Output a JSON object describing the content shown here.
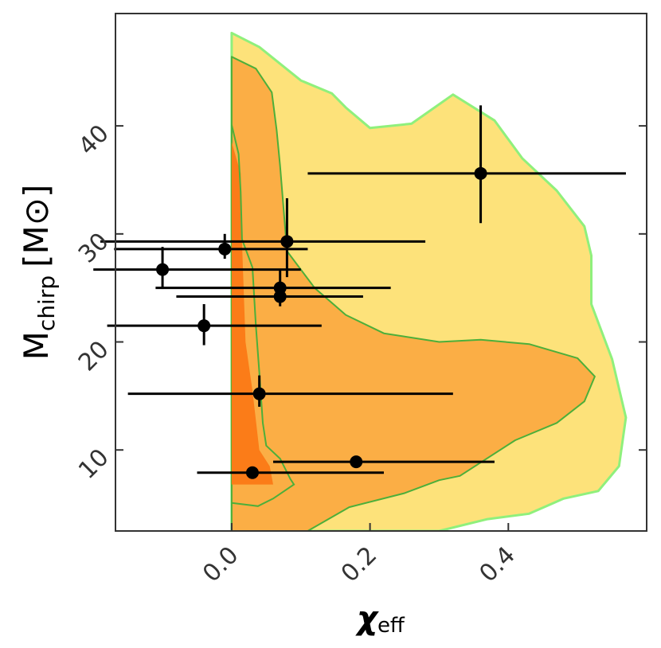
{
  "chart_data": {
    "type": "scatter",
    "xlabel": "χ",
    "xlabel_sub": "eff",
    "ylabel": "M",
    "ylabel_sub": "chirp",
    "ylabel_unit": "[M⊙]",
    "xlim": [
      -0.168,
      0.6
    ],
    "ylim": [
      2.5,
      50.4
    ],
    "x_ticks": [
      0.0,
      0.2,
      0.4
    ],
    "x_tick_labels": [
      "0.0",
      "0.2",
      "0.4"
    ],
    "y_ticks": [
      10,
      20,
      30,
      40
    ],
    "y_tick_labels": [
      "10",
      "20",
      "30",
      "40"
    ],
    "grid": false,
    "colors": {
      "outer_region": "#fde27a",
      "outer_edge": "#8ff07c",
      "middle_region": "#fbae45",
      "inner_region": "#fb7c18",
      "contour_line": "#4caf3a",
      "points": "#000000"
    },
    "regions": [
      {
        "level": "outer",
        "points": [
          [
            0.0,
            48.6
          ],
          [
            0.04,
            47.3
          ],
          [
            0.1,
            44.2
          ],
          [
            0.145,
            43.0
          ],
          [
            0.165,
            41.7
          ],
          [
            0.2,
            39.8
          ],
          [
            0.26,
            40.2
          ],
          [
            0.32,
            42.9
          ],
          [
            0.38,
            40.5
          ],
          [
            0.42,
            37.0
          ],
          [
            0.47,
            34.0
          ],
          [
            0.51,
            30.7
          ],
          [
            0.52,
            28.0
          ],
          [
            0.52,
            23.5
          ],
          [
            0.55,
            18.4
          ],
          [
            0.57,
            13.0
          ],
          [
            0.56,
            8.5
          ],
          [
            0.53,
            6.2
          ],
          [
            0.48,
            5.5
          ],
          [
            0.43,
            4.1
          ],
          [
            0.37,
            3.6
          ],
          [
            0.3,
            2.5
          ],
          [
            0.0,
            2.5
          ]
        ]
      },
      {
        "level": "middle",
        "points": [
          [
            0.0,
            46.4
          ],
          [
            0.035,
            45.3
          ],
          [
            0.058,
            43.1
          ],
          [
            0.065,
            39.6
          ],
          [
            0.07,
            36.3
          ],
          [
            0.08,
            28.4
          ],
          [
            0.12,
            25.0
          ],
          [
            0.165,
            22.5
          ],
          [
            0.22,
            20.8
          ],
          [
            0.3,
            20.0
          ],
          [
            0.36,
            20.2
          ],
          [
            0.43,
            19.8
          ],
          [
            0.5,
            18.5
          ],
          [
            0.525,
            16.8
          ],
          [
            0.51,
            14.5
          ],
          [
            0.47,
            12.5
          ],
          [
            0.41,
            10.9
          ],
          [
            0.33,
            7.6
          ],
          [
            0.3,
            7.2
          ],
          [
            0.25,
            6.0
          ],
          [
            0.17,
            4.7
          ],
          [
            0.11,
            2.5
          ],
          [
            0.0,
            2.5
          ]
        ]
      },
      {
        "level": "inner",
        "points": [
          [
            0.0,
            38.5
          ],
          [
            0.013,
            35.6
          ],
          [
            0.015,
            29.2
          ],
          [
            0.02,
            20.0
          ],
          [
            0.03,
            15.5
          ],
          [
            0.04,
            10.0
          ],
          [
            0.055,
            8.5
          ],
          [
            0.06,
            6.8
          ],
          [
            0.0,
            6.8
          ]
        ]
      }
    ],
    "contours": [
      [
        [
          0.0,
          40.1
        ],
        [
          0.01,
          37.4
        ],
        [
          0.013,
          33.9
        ],
        [
          0.015,
          29.5
        ],
        [
          0.03,
          26.9
        ],
        [
          0.035,
          21.5
        ],
        [
          0.04,
          17.2
        ],
        [
          0.045,
          12.5
        ],
        [
          0.05,
          10.4
        ],
        [
          0.07,
          9.2
        ],
        [
          0.085,
          7.3
        ],
        [
          0.09,
          6.8
        ],
        [
          0.06,
          5.5
        ],
        [
          0.038,
          4.8
        ],
        [
          0.0,
          5.1
        ]
      ]
    ],
    "series": [
      {
        "points": [
          {
            "x": -0.1,
            "y": 26.7,
            "xerr": [
              0.1,
              0.2
            ],
            "yerr": [
              1.8,
              2.1
            ]
          },
          {
            "x": -0.01,
            "y": 28.6,
            "xerr": [
              0.16,
              0.12
            ],
            "yerr": [
              0.9,
              1.4
            ]
          },
          {
            "x": 0.08,
            "y": 29.3,
            "xerr": [
              0.27,
              0.2
            ],
            "yerr": [
              3.3,
              4.0
            ]
          },
          {
            "x": 0.07,
            "y": 25.0,
            "xerr": [
              0.18,
              0.16
            ],
            "yerr": [
              1.3,
              1.6
            ]
          },
          {
            "x": 0.07,
            "y": 24.2,
            "xerr": [
              0.15,
              0.12
            ],
            "yerr": [
              0.9,
              1.1
            ]
          },
          {
            "x": -0.04,
            "y": 21.5,
            "xerr": [
              0.14,
              0.17
            ],
            "yerr": [
              1.8,
              2.0
            ]
          },
          {
            "x": 0.04,
            "y": 15.2,
            "xerr": [
              0.19,
              0.28
            ],
            "yerr": [
              1.2,
              1.7
            ]
          },
          {
            "x": 0.18,
            "y": 8.9,
            "xerr": [
              0.12,
              0.2
            ],
            "yerr": [
              0.0,
              0.0
            ]
          },
          {
            "x": 0.03,
            "y": 7.9,
            "xerr": [
              0.08,
              0.19
            ],
            "yerr": [
              0.0,
              0.0
            ]
          },
          {
            "x": 0.36,
            "y": 35.6,
            "xerr": [
              0.25,
              0.21
            ],
            "yerr": [
              4.6,
              6.3
            ]
          }
        ]
      }
    ]
  }
}
